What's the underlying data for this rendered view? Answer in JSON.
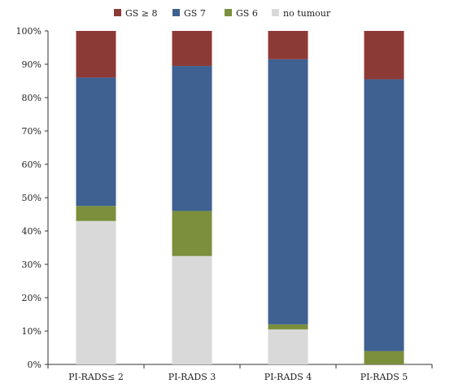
{
  "chart_data": {
    "type": "bar",
    "stacked": true,
    "categories": [
      "PI-RADS≤ 2",
      "PI-RADS 3",
      "PI-RADS 4",
      "PI-RADS 5"
    ],
    "series": [
      {
        "name": "no tumour",
        "color": "#d9d9d9",
        "values": [
          43,
          32.5,
          10.5,
          0
        ]
      },
      {
        "name": "GS 6",
        "color": "#7b8f3c",
        "values": [
          4.5,
          13.5,
          1.5,
          4
        ]
      },
      {
        "name": "GS 7",
        "color": "#3e6191",
        "values": [
          38.5,
          43.5,
          79.5,
          81.5
        ]
      },
      {
        "name": "GS ≥ 8",
        "color": "#8c3a36",
        "values": [
          14,
          10.5,
          8.5,
          14.5
        ]
      }
    ],
    "legend_order": [
      "GS ≥ 8",
      "GS 7",
      "GS 6",
      "no tumour"
    ],
    "ylim": [
      0,
      100
    ],
    "yticks": [
      "0%",
      "10%",
      "20%",
      "30%",
      "40%",
      "50%",
      "60%",
      "70%",
      "80%",
      "90%",
      "100%"
    ],
    "grid": false,
    "legend_position": "top",
    "title": "",
    "xlabel": "",
    "ylabel": ""
  }
}
